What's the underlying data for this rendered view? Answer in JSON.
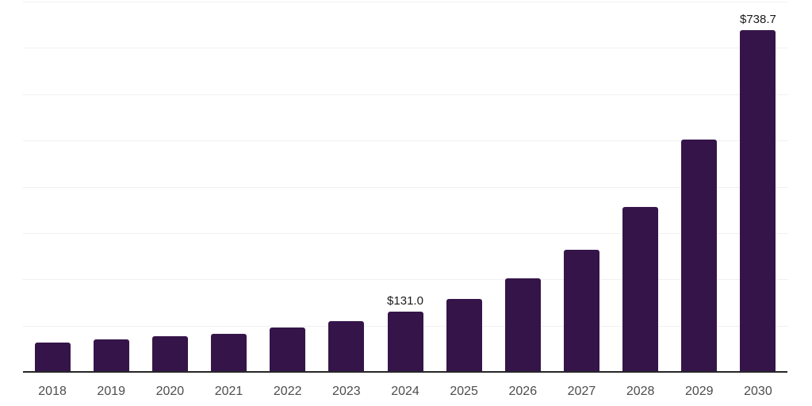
{
  "chart_data": {
    "type": "bar",
    "title": "",
    "xlabel": "",
    "ylabel": "",
    "categories": [
      "2018",
      "2019",
      "2020",
      "2021",
      "2022",
      "2023",
      "2024",
      "2025",
      "2026",
      "2027",
      "2028",
      "2029",
      "2030"
    ],
    "values": [
      63.5,
      69.5,
      77.0,
      83.0,
      95.5,
      109.0,
      131.0,
      158.0,
      201.5,
      264.5,
      357.0,
      502.0,
      738.7
    ],
    "point_labels": [
      "",
      "",
      "",
      "",
      "",
      "",
      "$131.0",
      "",
      "",
      "",
      "",
      "",
      "$738.7"
    ],
    "ylim": [
      0,
      800
    ],
    "grid_step": 100,
    "grid": "on",
    "legend": "none",
    "y_tick_labels_visible": false,
    "colors": {
      "background": "#ffffff",
      "bar": "#351549",
      "gridline": "#f0f0f0",
      "axis_line": "#262626",
      "tick_label": "#4d4d4d",
      "value_label": "#1a1a1a"
    }
  }
}
